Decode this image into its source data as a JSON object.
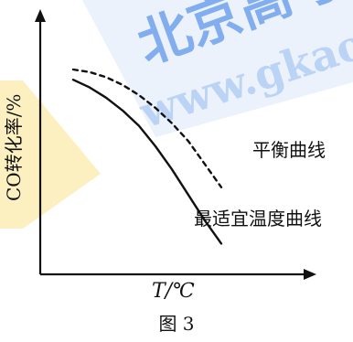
{
  "chart_data": {
    "type": "line",
    "xlabel": "T/℃",
    "ylabel": "CO转化率/%",
    "caption": "图 3",
    "watermark": {
      "text_cn": "北京高考",
      "text_url": "www.gkao"
    },
    "grid": false,
    "series": [
      {
        "name": "平衡曲线",
        "style": "dashed",
        "color": "#111111",
        "x": [
          0,
          1,
          2,
          3,
          4,
          5,
          6,
          7,
          8,
          9
        ],
        "y": [
          8,
          7.9,
          7.7,
          7.4,
          7.0,
          6.5,
          5.9,
          5.2,
          4.3,
          3.4
        ]
      },
      {
        "name": "最适宜温度曲线",
        "style": "solid",
        "color": "#111111",
        "x": [
          0,
          1,
          2,
          3,
          4,
          5,
          6,
          7,
          8,
          9
        ],
        "y": [
          7.6,
          7.3,
          6.9,
          6.4,
          5.8,
          5.0,
          4.1,
          3.1,
          2.1,
          1.2
        ]
      }
    ],
    "xlim": [
      -2,
      14
    ],
    "ylim": [
      0,
      10
    ]
  }
}
